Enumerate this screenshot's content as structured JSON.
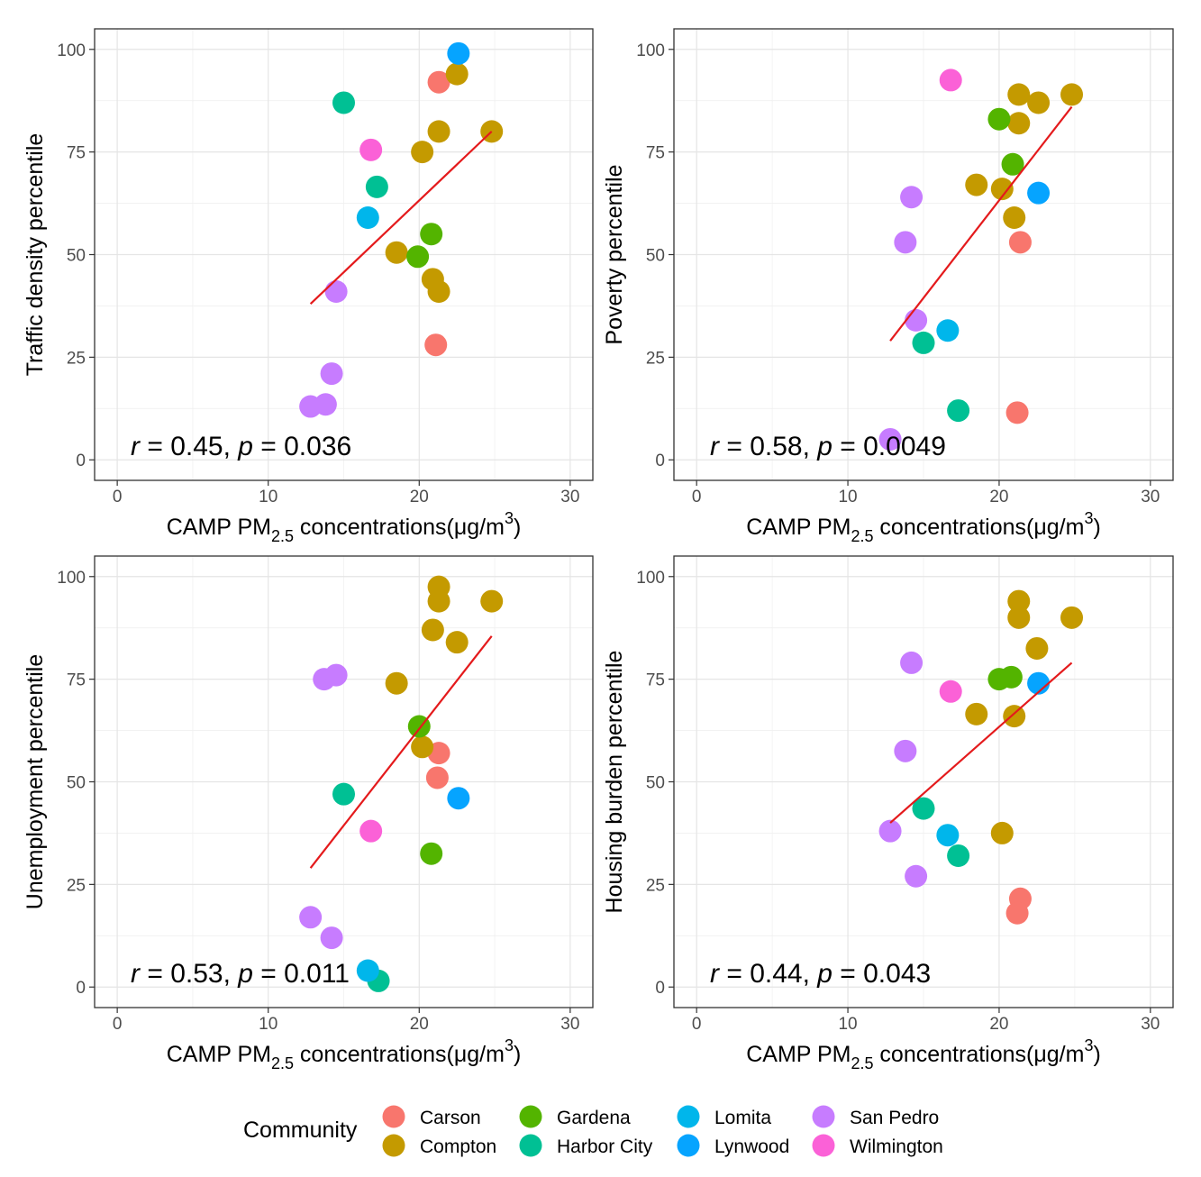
{
  "communities": [
    {
      "name": "Carson",
      "color": "#F8766D"
    },
    {
      "name": "Compton",
      "color": "#C49A00"
    },
    {
      "name": "Gardena",
      "color": "#53B400"
    },
    {
      "name": "Harbor City",
      "color": "#00C094"
    },
    {
      "name": "Lomita",
      "color": "#00B6EB"
    },
    {
      "name": "Lynwood",
      "color": "#06A4FF"
    },
    {
      "name": "San Pedro",
      "color": "#C77CFF"
    },
    {
      "name": "Wilmington",
      "color": "#FB61D7"
    }
  ],
  "legend": {
    "title": "Community"
  },
  "fit_line_color": "#E41A1C",
  "chart_data": [
    {
      "type": "scatter",
      "xlabel_main": "CAMP PM",
      "xlabel_sub": "2.5",
      "xlabel_rest": " concentrations(μg/m",
      "xlabel_sup": "3",
      "xlabel_end": ")",
      "ylabel": "Traffic density percentile",
      "xlim": [
        -1.5,
        31.5
      ],
      "ylim": [
        -5,
        105
      ],
      "xticks": [
        0,
        10,
        20,
        30
      ],
      "yticks": [
        0,
        25,
        50,
        75,
        100
      ],
      "stat": {
        "r_label": "r",
        "r_text": " = 0.45, ",
        "p_label": "p",
        "p_text": " = 0.036"
      },
      "fit": {
        "x": [
          12.8,
          24.8
        ],
        "y": [
          38,
          80
        ]
      },
      "points": [
        {
          "x": 21.3,
          "y": 92,
          "c": "Carson"
        },
        {
          "x": 21.1,
          "y": 28,
          "c": "Carson"
        },
        {
          "x": 22.5,
          "y": 94,
          "c": "Compton"
        },
        {
          "x": 24.8,
          "y": 80,
          "c": "Compton"
        },
        {
          "x": 21.3,
          "y": 80,
          "c": "Compton"
        },
        {
          "x": 20.2,
          "y": 75,
          "c": "Compton"
        },
        {
          "x": 18.5,
          "y": 50.5,
          "c": "Compton"
        },
        {
          "x": 20.9,
          "y": 44,
          "c": "Compton"
        },
        {
          "x": 21.3,
          "y": 41,
          "c": "Compton"
        },
        {
          "x": 20.8,
          "y": 55,
          "c": "Gardena"
        },
        {
          "x": 19.9,
          "y": 49.5,
          "c": "Gardena"
        },
        {
          "x": 15.0,
          "y": 87,
          "c": "Harbor City"
        },
        {
          "x": 17.2,
          "y": 66.5,
          "c": "Harbor City"
        },
        {
          "x": 16.6,
          "y": 59,
          "c": "Lomita"
        },
        {
          "x": 22.6,
          "y": 99,
          "c": "Lynwood"
        },
        {
          "x": 16.8,
          "y": 75.5,
          "c": "Wilmington"
        },
        {
          "x": 14.5,
          "y": 41,
          "c": "San Pedro"
        },
        {
          "x": 14.2,
          "y": 21,
          "c": "San Pedro"
        },
        {
          "x": 13.8,
          "y": 13.5,
          "c": "San Pedro"
        },
        {
          "x": 12.8,
          "y": 13,
          "c": "San Pedro"
        }
      ]
    },
    {
      "type": "scatter",
      "xlabel_main": "CAMP PM",
      "xlabel_sub": "2.5",
      "xlabel_rest": " concentrations(μg/m",
      "xlabel_sup": "3",
      "xlabel_end": ")",
      "ylabel": "Poverty percentile",
      "xlim": [
        -1.5,
        31.5
      ],
      "ylim": [
        -5,
        105
      ],
      "xticks": [
        0,
        10,
        20,
        30
      ],
      "yticks": [
        0,
        25,
        50,
        75,
        100
      ],
      "stat": {
        "r_label": "r",
        "r_text": " = 0.58, ",
        "p_label": "p",
        "p_text": " = 0.0049"
      },
      "fit": {
        "x": [
          12.8,
          24.8
        ],
        "y": [
          29,
          86
        ]
      },
      "points": [
        {
          "x": 21.4,
          "y": 53,
          "c": "Carson"
        },
        {
          "x": 21.2,
          "y": 11.5,
          "c": "Carson"
        },
        {
          "x": 21.3,
          "y": 89,
          "c": "Compton"
        },
        {
          "x": 22.6,
          "y": 87,
          "c": "Compton"
        },
        {
          "x": 24.8,
          "y": 89,
          "c": "Compton"
        },
        {
          "x": 21.3,
          "y": 82,
          "c": "Compton"
        },
        {
          "x": 18.5,
          "y": 67,
          "c": "Compton"
        },
        {
          "x": 20.2,
          "y": 66,
          "c": "Compton"
        },
        {
          "x": 21.0,
          "y": 59,
          "c": "Compton"
        },
        {
          "x": 20.0,
          "y": 83,
          "c": "Gardena"
        },
        {
          "x": 20.9,
          "y": 72,
          "c": "Gardena"
        },
        {
          "x": 15.0,
          "y": 28.5,
          "c": "Harbor City"
        },
        {
          "x": 17.3,
          "y": 12,
          "c": "Harbor City"
        },
        {
          "x": 16.6,
          "y": 31.5,
          "c": "Lomita"
        },
        {
          "x": 22.6,
          "y": 65,
          "c": "Lynwood"
        },
        {
          "x": 16.8,
          "y": 92.5,
          "c": "Wilmington"
        },
        {
          "x": 14.2,
          "y": 64,
          "c": "San Pedro"
        },
        {
          "x": 13.8,
          "y": 53,
          "c": "San Pedro"
        },
        {
          "x": 14.5,
          "y": 34,
          "c": "San Pedro"
        },
        {
          "x": 12.8,
          "y": 5,
          "c": "San Pedro"
        }
      ]
    },
    {
      "type": "scatter",
      "xlabel_main": "CAMP PM",
      "xlabel_sub": "2.5",
      "xlabel_rest": " concentrations(μg/m",
      "xlabel_sup": "3",
      "xlabel_end": ")",
      "ylabel": "Unemployment percentile",
      "xlim": [
        -1.5,
        31.5
      ],
      "ylim": [
        -5,
        105
      ],
      "xticks": [
        0,
        10,
        20,
        30
      ],
      "yticks": [
        0,
        25,
        50,
        75,
        100
      ],
      "stat": {
        "r_label": "r",
        "r_text": " = 0.53, ",
        "p_label": "p",
        "p_text": " = 0.011"
      },
      "fit": {
        "x": [
          12.8,
          24.8
        ],
        "y": [
          29,
          85.5
        ]
      },
      "points": [
        {
          "x": 21.3,
          "y": 57,
          "c": "Carson"
        },
        {
          "x": 21.2,
          "y": 51,
          "c": "Carson"
        },
        {
          "x": 21.3,
          "y": 97.5,
          "c": "Compton"
        },
        {
          "x": 21.3,
          "y": 94,
          "c": "Compton"
        },
        {
          "x": 24.8,
          "y": 94,
          "c": "Compton"
        },
        {
          "x": 20.9,
          "y": 87,
          "c": "Compton"
        },
        {
          "x": 22.5,
          "y": 84,
          "c": "Compton"
        },
        {
          "x": 18.5,
          "y": 74,
          "c": "Compton"
        },
        {
          "x": 20.2,
          "y": 58.5,
          "c": "Compton"
        },
        {
          "x": 20.0,
          "y": 63.5,
          "c": "Gardena"
        },
        {
          "x": 20.8,
          "y": 32.5,
          "c": "Gardena"
        },
        {
          "x": 15.0,
          "y": 47,
          "c": "Harbor City"
        },
        {
          "x": 17.3,
          "y": 1.5,
          "c": "Harbor City"
        },
        {
          "x": 16.6,
          "y": 4,
          "c": "Lomita"
        },
        {
          "x": 22.6,
          "y": 46,
          "c": "Lynwood"
        },
        {
          "x": 16.8,
          "y": 38,
          "c": "Wilmington"
        },
        {
          "x": 13.7,
          "y": 75,
          "c": "San Pedro"
        },
        {
          "x": 14.5,
          "y": 76,
          "c": "San Pedro"
        },
        {
          "x": 12.8,
          "y": 17,
          "c": "San Pedro"
        },
        {
          "x": 14.2,
          "y": 12,
          "c": "San Pedro"
        }
      ]
    },
    {
      "type": "scatter",
      "xlabel_main": "CAMP PM",
      "xlabel_sub": "2.5",
      "xlabel_rest": " concentrations(μg/m",
      "xlabel_sup": "3",
      "xlabel_end": ")",
      "ylabel": "Housing burden percentile",
      "xlim": [
        -1.5,
        31.5
      ],
      "ylim": [
        -5,
        105
      ],
      "xticks": [
        0,
        10,
        20,
        30
      ],
      "yticks": [
        0,
        25,
        50,
        75,
        100
      ],
      "stat": {
        "r_label": "r",
        "r_text": " = 0.44, ",
        "p_label": "p",
        "p_text": " = 0.043"
      },
      "fit": {
        "x": [
          12.8,
          24.8
        ],
        "y": [
          40,
          79
        ]
      },
      "points": [
        {
          "x": 21.4,
          "y": 21.5,
          "c": "Carson"
        },
        {
          "x": 21.2,
          "y": 18,
          "c": "Carson"
        },
        {
          "x": 21.3,
          "y": 94,
          "c": "Compton"
        },
        {
          "x": 21.3,
          "y": 90,
          "c": "Compton"
        },
        {
          "x": 24.8,
          "y": 90,
          "c": "Compton"
        },
        {
          "x": 22.5,
          "y": 82.5,
          "c": "Compton"
        },
        {
          "x": 18.5,
          "y": 66.5,
          "c": "Compton"
        },
        {
          "x": 21.0,
          "y": 66,
          "c": "Compton"
        },
        {
          "x": 20.2,
          "y": 37.5,
          "c": "Compton"
        },
        {
          "x": 20.0,
          "y": 75,
          "c": "Gardena"
        },
        {
          "x": 20.8,
          "y": 75.5,
          "c": "Gardena"
        },
        {
          "x": 15.0,
          "y": 43.5,
          "c": "Harbor City"
        },
        {
          "x": 17.3,
          "y": 32,
          "c": "Harbor City"
        },
        {
          "x": 16.6,
          "y": 37,
          "c": "Lomita"
        },
        {
          "x": 22.6,
          "y": 74,
          "c": "Lynwood"
        },
        {
          "x": 16.8,
          "y": 72,
          "c": "Wilmington"
        },
        {
          "x": 14.2,
          "y": 79,
          "c": "San Pedro"
        },
        {
          "x": 13.8,
          "y": 57.5,
          "c": "San Pedro"
        },
        {
          "x": 12.8,
          "y": 38,
          "c": "San Pedro"
        },
        {
          "x": 14.5,
          "y": 27,
          "c": "San Pedro"
        }
      ]
    }
  ]
}
